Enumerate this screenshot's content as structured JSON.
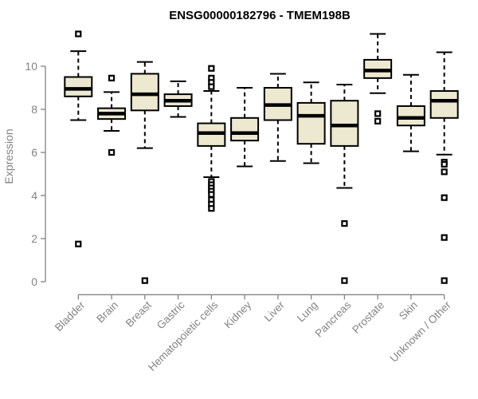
{
  "chart_data": {
    "type": "box",
    "title": "ENSG00000182796 - TMEM198B",
    "xlabel": "",
    "ylabel": "Expression",
    "y_ticks": [
      0,
      2,
      4,
      6,
      8,
      10
    ],
    "ylim": [
      0,
      11.6
    ],
    "grid": false,
    "legend": "none",
    "categories": [
      "Bladder",
      "Brain",
      "Breast",
      "Gastric",
      "Hematopoietic cells",
      "Kidney",
      "Liver",
      "Lung",
      "Pancreas",
      "Prostate",
      "Skin",
      "Unknown / Other"
    ],
    "series": [
      {
        "name": "Bladder",
        "whisker_low": 7.5,
        "q1": 8.6,
        "median": 8.95,
        "q3": 9.5,
        "whisker_high": 10.7,
        "outliers": [
          11.5,
          1.75
        ]
      },
      {
        "name": "Brain",
        "whisker_low": 7.0,
        "q1": 7.55,
        "median": 7.8,
        "q3": 8.05,
        "whisker_high": 8.8,
        "outliers": [
          9.45,
          6.0
        ]
      },
      {
        "name": "Breast",
        "whisker_low": 6.2,
        "q1": 7.95,
        "median": 8.7,
        "q3": 9.65,
        "whisker_high": 10.2,
        "outliers": [
          0.05
        ]
      },
      {
        "name": "Gastric",
        "whisker_low": 7.65,
        "q1": 8.15,
        "median": 8.4,
        "q3": 8.7,
        "whisker_high": 9.3,
        "outliers": []
      },
      {
        "name": "Hematopoietic cells",
        "whisker_low": 4.85,
        "q1": 6.3,
        "median": 6.9,
        "q3": 7.35,
        "whisker_high": 8.85,
        "outliers": [
          9.9,
          9.45,
          9.25,
          9.05,
          4.65,
          4.5,
          4.35,
          4.2,
          4.05,
          3.8,
          3.6,
          3.4
        ]
      },
      {
        "name": "Kidney",
        "whisker_low": 5.35,
        "q1": 6.55,
        "median": 6.9,
        "q3": 7.6,
        "whisker_high": 9.0,
        "outliers": []
      },
      {
        "name": "Liver",
        "whisker_low": 5.6,
        "q1": 7.5,
        "median": 8.2,
        "q3": 9.0,
        "whisker_high": 9.65,
        "outliers": []
      },
      {
        "name": "Lung",
        "whisker_low": 5.5,
        "q1": 6.4,
        "median": 7.7,
        "q3": 8.3,
        "whisker_high": 9.25,
        "outliers": []
      },
      {
        "name": "Pancreas",
        "whisker_low": 4.35,
        "q1": 6.3,
        "median": 7.25,
        "q3": 8.4,
        "whisker_high": 9.15,
        "outliers": [
          2.7,
          0.05
        ]
      },
      {
        "name": "Prostate",
        "whisker_low": 8.75,
        "q1": 9.45,
        "median": 9.8,
        "q3": 10.3,
        "whisker_high": 11.5,
        "outliers": [
          7.8,
          7.45
        ]
      },
      {
        "name": "Skin",
        "whisker_low": 6.05,
        "q1": 7.25,
        "median": 7.6,
        "q3": 8.15,
        "whisker_high": 9.6,
        "outliers": []
      },
      {
        "name": "Unknown / Other",
        "whisker_low": 5.9,
        "q1": 7.6,
        "median": 8.4,
        "q3": 8.85,
        "whisker_high": 10.65,
        "outliers": [
          5.55,
          5.45,
          5.1,
          3.9,
          2.05,
          0.05
        ]
      }
    ],
    "colors": {
      "box_fill": "#ede8d0",
      "box_border": "#000000",
      "median": "#000000",
      "axis": "#838383",
      "tick_labels": "#838383",
      "title": "#000000",
      "background": "#ffffff"
    }
  }
}
